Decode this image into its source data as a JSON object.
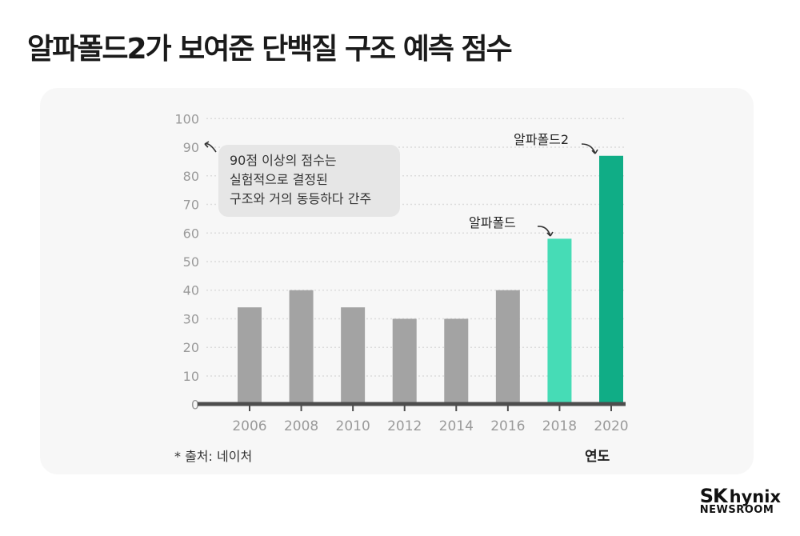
{
  "title": "알파폴드2가 보여준 단백질 구조 예측 점수",
  "chart_data": {
    "type": "bar",
    "title": "알파폴드2가 보여준 단백질 구조 예측 점수",
    "xlabel": "연도",
    "ylabel": "",
    "categories": [
      "2006",
      "2008",
      "2010",
      "2012",
      "2014",
      "2016",
      "2018",
      "2020"
    ],
    "values": [
      34,
      40,
      34,
      30,
      30,
      40,
      58,
      87
    ],
    "colors": [
      "#a3a3a3",
      "#a3a3a3",
      "#a3a3a3",
      "#a3a3a3",
      "#a3a3a3",
      "#a3a3a3",
      "#46dcb6",
      "#10ad86"
    ],
    "ylim": [
      0,
      100
    ],
    "yticks": [
      "0",
      "10",
      "20",
      "30",
      "40",
      "50",
      "60",
      "70",
      "80",
      "90",
      "100"
    ],
    "grid": true,
    "annotations": {
      "threshold_note": [
        "90점 이상의 점수는",
        "실험적으로 결정된",
        "구조와 거의 동등하다 간주"
      ],
      "alphafold": "알파폴드",
      "alphafold2": "알파폴드2"
    },
    "source": "* 출처: 네이처"
  },
  "logo": {
    "brand": "SK",
    "name": "hynix",
    "sub": "NEWSROOM"
  }
}
